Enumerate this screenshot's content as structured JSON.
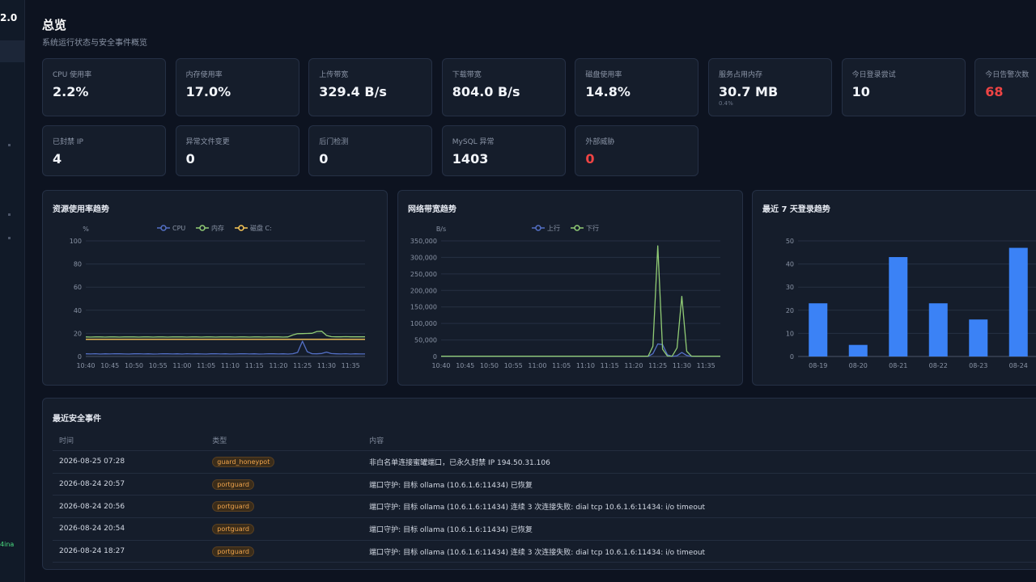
{
  "sidebar": {
    "version": "2.0",
    "footer": "4ina"
  },
  "header": {
    "title": "总览",
    "subtitle": "系统运行状态与安全事件概览"
  },
  "cards": [
    {
      "label": "CPU 使用率",
      "value": "2.2%"
    },
    {
      "label": "内存使用率",
      "value": "17.0%"
    },
    {
      "label": "上传带宽",
      "value": "329.4 B/s"
    },
    {
      "label": "下载带宽",
      "value": "804.0 B/s"
    },
    {
      "label": "磁盘使用率",
      "value": "14.8%"
    },
    {
      "label": "服务占用内存",
      "value": "30.7 MB",
      "sub": "0.4%"
    },
    {
      "label": "今日登录尝试",
      "value": "10"
    },
    {
      "label": "今日告警次数",
      "value": "68",
      "alert": true
    },
    {
      "label": "已封禁 IP",
      "value": "4"
    },
    {
      "label": "异常文件变更",
      "value": "0"
    },
    {
      "label": "后门检测",
      "value": "0"
    },
    {
      "label": "MySQL 异常",
      "value": "1403"
    },
    {
      "label": "外部威胁",
      "value": "0",
      "alert": true
    }
  ],
  "chart_data": [
    {
      "type": "line",
      "title": "资源使用率趋势",
      "y_label": "%",
      "ylim": [
        0,
        100
      ],
      "yticks": [
        0,
        20,
        40,
        60,
        80,
        100
      ],
      "grid": true,
      "categories": [
        "10:40",
        null,
        null,
        null,
        null,
        "10:45",
        null,
        null,
        null,
        null,
        "10:50",
        null,
        null,
        null,
        null,
        "10:55",
        null,
        null,
        null,
        null,
        "11:00",
        null,
        null,
        null,
        null,
        "11:05",
        null,
        null,
        null,
        null,
        "11:10",
        null,
        null,
        null,
        null,
        "11:15",
        null,
        null,
        null,
        null,
        "11:20",
        null,
        null,
        null,
        null,
        "11:25",
        null,
        null,
        null,
        null,
        "11:30",
        null,
        null,
        null,
        null,
        "11:35",
        null,
        null,
        null
      ],
      "series": [
        {
          "name": "CPU",
          "color": "#5470c6",
          "values": [
            2.3,
            2.2,
            2.4,
            2.1,
            2.3,
            2.2,
            2.4,
            2.3,
            2.2,
            2.1,
            2.3,
            2.4,
            2.2,
            2.3,
            2.1,
            2.2,
            2.4,
            2.3,
            2.2,
            2.3,
            2.1,
            2.4,
            2.2,
            2.3,
            2.2,
            2.1,
            2.3,
            2.4,
            2.2,
            2.3,
            2.1,
            2.2,
            2.3,
            2.4,
            2.2,
            2.3,
            2.1,
            2.2,
            2.4,
            2.3,
            2.2,
            2.3,
            2.1,
            2.4,
            3.5,
            13.2,
            4.1,
            2.4,
            2.3,
            2.6,
            3.8,
            2.5,
            2.3,
            2.2,
            2.4,
            2.1,
            2.3,
            2.2,
            2.2
          ]
        },
        {
          "name": "内存",
          "color": "#91cc75",
          "values": [
            16.9,
            16.8,
            16.9,
            16.9,
            16.8,
            16.9,
            16.9,
            16.8,
            16.9,
            16.9,
            16.9,
            16.8,
            16.9,
            16.9,
            16.8,
            16.9,
            16.9,
            16.8,
            16.9,
            16.9,
            16.9,
            16.8,
            16.9,
            16.9,
            16.8,
            16.9,
            16.9,
            16.8,
            16.9,
            16.9,
            16.9,
            16.8,
            16.9,
            16.9,
            16.8,
            16.9,
            16.9,
            16.8,
            16.9,
            16.9,
            16.9,
            16.8,
            16.9,
            18.6,
            19.7,
            19.8,
            19.9,
            20.1,
            21.6,
            21.8,
            18.2,
            17.1,
            17.0,
            17.0,
            17.1,
            17.0,
            17.0,
            17.0,
            17.0
          ]
        },
        {
          "name": "磁盘 C:",
          "color": "#fac858",
          "values": [
            14.8,
            14.8,
            14.8,
            14.8,
            14.8,
            14.8,
            14.8,
            14.8,
            14.8,
            14.8,
            14.8,
            14.8,
            14.8,
            14.8,
            14.8,
            14.8,
            14.8,
            14.8,
            14.8,
            14.8,
            14.8,
            14.8,
            14.8,
            14.8,
            14.8,
            14.8,
            14.8,
            14.8,
            14.8,
            14.8,
            14.8,
            14.8,
            14.8,
            14.8,
            14.8,
            14.8,
            14.8,
            14.8,
            14.8,
            14.8,
            14.8,
            14.8,
            14.8,
            14.8,
            14.8,
            14.8,
            14.8,
            14.8,
            14.8,
            14.8,
            14.8,
            14.8,
            14.8,
            14.8,
            14.8,
            14.8,
            14.8,
            14.8,
            14.8
          ]
        }
      ]
    },
    {
      "type": "line",
      "title": "网络带宽趋势",
      "y_label": "B/s",
      "ylim": [
        0,
        350000
      ],
      "yticks": [
        0,
        {
          "value": 50000,
          "label": "50,000"
        },
        {
          "value": 100000,
          "label": "100,000"
        },
        {
          "value": 150000,
          "label": "150,000"
        },
        {
          "value": 200000,
          "label": "200,000"
        },
        {
          "value": 250000,
          "label": "250,000"
        },
        {
          "value": 300000,
          "label": "300,000"
        },
        {
          "value": 350000,
          "label": "350,000"
        }
      ],
      "grid": true,
      "categories": [
        "10:40",
        null,
        null,
        null,
        null,
        "10:45",
        null,
        null,
        null,
        null,
        "10:50",
        null,
        null,
        null,
        null,
        "10:55",
        null,
        null,
        null,
        null,
        "11:00",
        null,
        null,
        null,
        null,
        "11:05",
        null,
        null,
        null,
        null,
        "11:10",
        null,
        null,
        null,
        null,
        "11:15",
        null,
        null,
        null,
        null,
        "11:20",
        null,
        null,
        null,
        null,
        "11:25",
        null,
        null,
        null,
        null,
        "11:30",
        null,
        null,
        null,
        null,
        "11:35",
        null,
        null,
        null
      ],
      "series": [
        {
          "name": "上行",
          "color": "#5470c6",
          "values": [
            329,
            335,
            322,
            331,
            328,
            330,
            333,
            326,
            329,
            327,
            329,
            335,
            322,
            331,
            328,
            330,
            333,
            326,
            329,
            327,
            329,
            335,
            322,
            331,
            328,
            330,
            333,
            326,
            329,
            327,
            329,
            335,
            322,
            331,
            328,
            330,
            333,
            326,
            329,
            327,
            330,
            328,
            331,
            327,
            8200,
            38000,
            36000,
            5200,
            340,
            2100,
            12000,
            3100,
            335,
            329,
            331,
            328,
            330,
            327,
            329
          ]
        },
        {
          "name": "下行",
          "color": "#91cc75",
          "values": [
            820,
            790,
            805,
            812,
            798,
            801,
            830,
            785,
            808,
            795,
            810,
            802,
            799,
            815,
            790,
            806,
            812,
            797,
            803,
            808,
            795,
            811,
            804,
            799,
            820,
            788,
            806,
            801,
            809,
            794,
            803,
            812,
            798,
            805,
            791,
            807,
            814,
            796,
            802,
            809,
            800,
            806,
            811,
            797,
            31000,
            335000,
            22000,
            1200,
            900,
            26000,
            182000,
            16000,
            950,
            810,
            798,
            805,
            803,
            799,
            804
          ]
        }
      ]
    },
    {
      "type": "bar",
      "title": "最近 7 天登录趋势",
      "ylim": [
        0,
        50
      ],
      "yticks": [
        0,
        10,
        20,
        30,
        40,
        50
      ],
      "grid": true,
      "color": "#3b82f6",
      "categories": [
        "08-19",
        "08-20",
        "08-21",
        "08-22",
        "08-23",
        "08-24"
      ],
      "values": [
        23,
        5,
        43,
        23,
        16,
        47
      ]
    }
  ],
  "events": {
    "title": "最近安全事件",
    "columns": [
      "时间",
      "类型",
      "内容"
    ],
    "rows": [
      [
        "2026-08-25 07:28",
        "guard_honeypot",
        "非白名单连接蜜罐端口，已永久封禁 IP 194.50.31.106"
      ],
      [
        "2026-08-24 20:57",
        "portguard",
        "端口守护: 目标 ollama (10.6.1.6:11434) 已恢复"
      ],
      [
        "2026-08-24 20:56",
        "portguard",
        "端口守护: 目标 ollama (10.6.1.6:11434) 连续 3 次连接失败: dial tcp 10.6.1.6:11434: i/o timeout"
      ],
      [
        "2026-08-24 20:54",
        "portguard",
        "端口守护: 目标 ollama (10.6.1.6:11434) 已恢复"
      ],
      [
        "2026-08-24 18:27",
        "portguard",
        "端口守护: 目标 ollama (10.6.1.6:11434) 连续 3 次连接失败: dial tcp 10.6.1.6:11434: i/o timeout"
      ]
    ]
  }
}
